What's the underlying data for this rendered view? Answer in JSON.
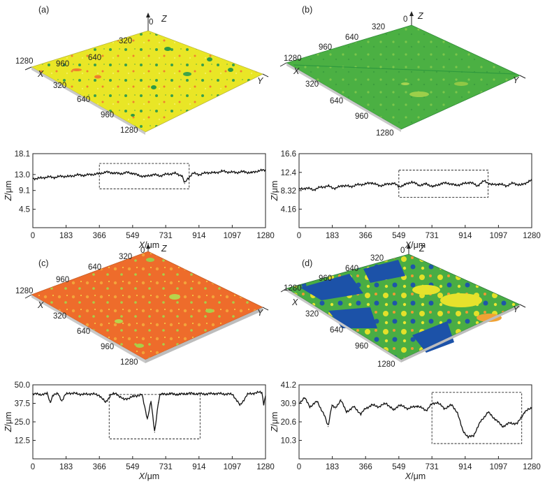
{
  "colors": {
    "yellow": "#e7e322",
    "yellow_light": "#f1ee4c",
    "green": "#5cba3c",
    "green_dark": "#2f9a3e",
    "orange": "#ec6a2a",
    "orange_light": "#f0883a",
    "blue": "#1c52a8",
    "line": "#111111"
  },
  "panels": [
    {
      "id": "a",
      "label": "(a)",
      "surface_color": "yellow",
      "surface_axes": {
        "z": "Z",
        "x": "X",
        "y": "Y",
        "origin": "0"
      },
      "surface_ticks": {
        "back_edge": [
          "320",
          "640",
          "960",
          "1280"
        ],
        "front_edge": [
          "320",
          "640",
          "960",
          "1280"
        ]
      }
    },
    {
      "id": "b",
      "label": "(b)",
      "surface_color": "green",
      "surface_axes": {
        "z": "Z",
        "x": "X",
        "y": "Y",
        "origin": "0"
      },
      "surface_ticks": {
        "back_edge": [
          "320",
          "640",
          "960",
          "1280"
        ],
        "front_edge": [
          "320",
          "640",
          "960",
          "1280"
        ]
      }
    },
    {
      "id": "c",
      "label": "(c)",
      "surface_color": "orange",
      "surface_axes": {
        "z": "Z",
        "x": "X",
        "y": "Y",
        "origin": "0"
      },
      "surface_ticks": {
        "back_edge": [
          "320",
          "640",
          "960",
          "1280"
        ],
        "front_edge": [
          "320",
          "640",
          "960",
          "1280"
        ]
      }
    },
    {
      "id": "d",
      "label": "(d)",
      "surface_color": "mixed",
      "surface_axes": {
        "z": "Z",
        "x": "X",
        "y": "Y",
        "origin": "0"
      },
      "surface_ticks": {
        "back_edge": [
          "320",
          "640",
          "960",
          "1280"
        ],
        "front_edge": [
          "320",
          "640",
          "960",
          "1280"
        ]
      }
    }
  ],
  "chart_data": [
    {
      "type": "line",
      "panel": "a",
      "xlabel": "X/μm",
      "ylabel": "Z/μm",
      "xlim": [
        0,
        1280
      ],
      "ylim": [
        0,
        18.1
      ],
      "xticks": [
        "0",
        "183",
        "366",
        "549",
        "731",
        "914",
        "1097",
        "1280"
      ],
      "yticks": [
        "4.5",
        "9.1",
        "13.0",
        "18.1"
      ],
      "ytick_values": [
        4.5,
        9.1,
        13.0,
        18.1
      ],
      "highlight": {
        "x": [
          366,
          860
        ],
        "y": [
          9.5,
          15.7
        ]
      },
      "x": [
        0,
        40,
        80,
        120,
        160,
        200,
        240,
        280,
        320,
        366,
        400,
        440,
        480,
        520,
        549,
        580,
        620,
        660,
        700,
        740,
        780,
        800,
        820,
        835,
        850,
        880,
        920,
        960,
        1000,
        1040,
        1080,
        1120,
        1160,
        1200,
        1240,
        1280
      ],
      "values": [
        12.0,
        12.1,
        12.4,
        12.3,
        12.6,
        12.5,
        12.9,
        12.8,
        13.0,
        13.2,
        13.6,
        13.4,
        13.2,
        13.5,
        13.3,
        12.8,
        12.5,
        13.0,
        12.7,
        13.1,
        13.3,
        13.0,
        12.8,
        10.8,
        11.9,
        13.3,
        13.0,
        13.5,
        13.4,
        13.8,
        13.6,
        13.5,
        13.7,
        13.4,
        13.9,
        14.1
      ]
    },
    {
      "type": "line",
      "panel": "b",
      "xlabel": "X/μm",
      "ylabel": "Z/μm",
      "xlim": [
        0,
        1280
      ],
      "ylim": [
        0,
        16.6
      ],
      "xticks": [
        "0",
        "183",
        "366",
        "549",
        "731",
        "914",
        "1097",
        "1280"
      ],
      "yticks": [
        "4.16",
        "8.32",
        "12.4",
        "16.6"
      ],
      "ytick_values": [
        4.16,
        8.32,
        12.4,
        16.6
      ],
      "highlight": {
        "x": [
          549,
          1040
        ],
        "y": [
          6.8,
          12.9
        ]
      },
      "x": [
        0,
        40,
        80,
        120,
        160,
        200,
        240,
        280,
        320,
        366,
        400,
        440,
        480,
        520,
        549,
        580,
        620,
        660,
        700,
        740,
        780,
        820,
        860,
        900,
        940,
        980,
        1020,
        1060,
        1097,
        1140,
        1180,
        1220,
        1260,
        1280
      ],
      "values": [
        8.6,
        8.9,
        8.5,
        9.1,
        9.3,
        8.8,
        9.5,
        9.2,
        9.6,
        9.8,
        10.1,
        9.4,
        9.7,
        10.0,
        9.2,
        9.6,
        10.3,
        9.5,
        9.8,
        9.2,
        9.9,
        10.0,
        9.5,
        9.8,
        10.2,
        9.4,
        10.5,
        9.6,
        9.8,
        9.4,
        10.0,
        9.5,
        10.3,
        10.6
      ]
    },
    {
      "type": "line",
      "panel": "c",
      "xlabel": "X/μm",
      "ylabel": "Z/μm",
      "xlim": [
        0,
        1280
      ],
      "ylim": [
        0,
        50.0
      ],
      "xticks": [
        "0",
        "183",
        "366",
        "549",
        "731",
        "914",
        "1097",
        "1280"
      ],
      "yticks": [
        "12.5",
        "25.0",
        "37.5",
        "50.0"
      ],
      "ytick_values": [
        12.5,
        25.0,
        37.5,
        50.0
      ],
      "highlight": {
        "x": [
          420,
          920
        ],
        "y": [
          13.5,
          43.5
        ]
      },
      "x": [
        0,
        40,
        80,
        95,
        110,
        140,
        160,
        180,
        200,
        240,
        280,
        320,
        366,
        400,
        430,
        460,
        500,
        549,
        600,
        630,
        650,
        670,
        690,
        700,
        720,
        760,
        800,
        850,
        900,
        950,
        1000,
        1050,
        1100,
        1140,
        1180,
        1220,
        1260,
        1270,
        1280
      ],
      "values": [
        44.0,
        43.5,
        44.0,
        38.0,
        43.0,
        44.0,
        39.0,
        43.5,
        44.5,
        44.0,
        43.5,
        44.0,
        43.0,
        38.0,
        43.5,
        44.0,
        40.0,
        42.0,
        43.5,
        27.0,
        39.0,
        18.0,
        38.0,
        43.5,
        43.8,
        44.0,
        43.5,
        44.2,
        44.0,
        43.8,
        44.1,
        43.9,
        43.5,
        36.0,
        43.5,
        44.5,
        45.0,
        37.0,
        42.5
      ]
    },
    {
      "type": "line",
      "panel": "d",
      "xlabel": "X/μm",
      "ylabel": "Z/μm",
      "xlim": [
        0,
        1280
      ],
      "ylim": [
        0,
        41.2
      ],
      "xticks": [
        "0",
        "183",
        "366",
        "549",
        "731",
        "914",
        "1097",
        "1280"
      ],
      "yticks": [
        "10.3",
        "20.6",
        "30.9",
        "41.2"
      ],
      "ytick_values": [
        10.3,
        20.6,
        30.9,
        41.2
      ],
      "highlight": {
        "x": [
          731,
          1225
        ],
        "y": [
          8.5,
          37.0
        ]
      },
      "x": [
        0,
        30,
        60,
        100,
        140,
        160,
        180,
        200,
        230,
        260,
        300,
        340,
        366,
        400,
        440,
        480,
        520,
        549,
        600,
        650,
        700,
        731,
        760,
        800,
        840,
        870,
        900,
        930,
        960,
        1000,
        1040,
        1080,
        1120,
        1160,
        1200,
        1240,
        1280
      ],
      "values": [
        31.0,
        34.0,
        29.0,
        32.0,
        24.0,
        18.0,
        30.0,
        28.0,
        33.0,
        26.0,
        29.0,
        25.0,
        28.0,
        30.0,
        29.0,
        31.0,
        27.0,
        30.0,
        28.0,
        29.5,
        27.0,
        30.5,
        31.5,
        28.0,
        30.0,
        26.0,
        16.0,
        12.0,
        13.0,
        21.0,
        26.0,
        22.0,
        18.0,
        20.0,
        19.5,
        26.0,
        28.5
      ]
    }
  ]
}
